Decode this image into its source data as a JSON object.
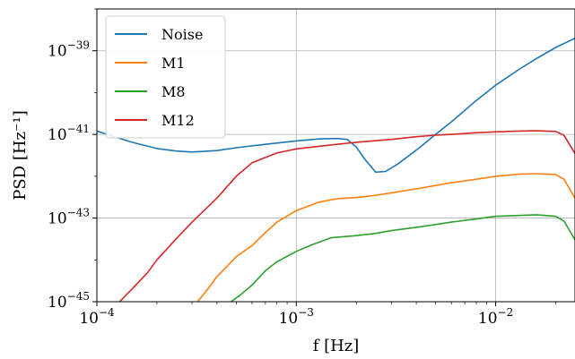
{
  "chart_data": {
    "type": "line",
    "xlabel": "f [Hz]",
    "ylabel": "PSD [Hz⁻¹]",
    "xscale": "log",
    "yscale": "log",
    "xlim": [
      0.0001,
      0.025
    ],
    "ylim": [
      1e-45,
      1e-38
    ],
    "x_ticks": [
      {
        "value": 0.0001,
        "base": "10",
        "exp": "−4"
      },
      {
        "value": 0.001,
        "base": "10",
        "exp": "−3"
      },
      {
        "value": 0.01,
        "base": "10",
        "exp": "−2"
      }
    ],
    "y_ticks": [
      {
        "value": 1e-45,
        "base": "10",
        "exp": "−45"
      },
      {
        "value": 1e-43,
        "base": "10",
        "exp": "−43"
      },
      {
        "value": 1e-41,
        "base": "10",
        "exp": "−41"
      },
      {
        "value": 1e-39,
        "base": "10",
        "exp": "−39"
      }
    ],
    "grid": true,
    "legend_position": "top-left",
    "series": [
      {
        "name": "Noise",
        "color": "#1f77b4",
        "x": [
          0.0001,
          0.00015,
          0.0002,
          0.00025,
          0.0003,
          0.0004,
          0.0005,
          0.0007,
          0.001,
          0.0013,
          0.0016,
          0.0018,
          0.002,
          0.0022,
          0.0025,
          0.0028,
          0.0032,
          0.004,
          0.005,
          0.006,
          0.008,
          0.01,
          0.013,
          0.016,
          0.02,
          0.025
        ],
        "y": [
          1.2e-41,
          6.5e-42,
          4.6e-42,
          4e-42,
          3.8e-42,
          4.1e-42,
          4.8e-42,
          5.8e-42,
          7e-42,
          7.8e-42,
          8e-42,
          7.6e-42,
          5e-42,
          2.6e-42,
          1.25e-42,
          1.3e-42,
          1.9e-42,
          4.2e-42,
          1e-41,
          2e-41,
          6.5e-41,
          1.5e-40,
          3.5e-40,
          6.5e-40,
          1.2e-39,
          2e-39
        ]
      },
      {
        "name": "M1",
        "color": "#ff7f0e",
        "x": [
          0.00032,
          0.00036,
          0.0004,
          0.00045,
          0.0005,
          0.0006,
          0.0007,
          0.0008,
          0.001,
          0.0013,
          0.0016,
          0.002,
          0.0025,
          0.003,
          0.004,
          0.005,
          0.006,
          0.008,
          0.01,
          0.013,
          0.016,
          0.02,
          0.022,
          0.025
        ],
        "y": [
          1e-45,
          2e-45,
          4e-45,
          7e-45,
          1.2e-44,
          2.2e-44,
          4.5e-44,
          8e-44,
          1.5e-43,
          2.4e-43,
          2.9e-43,
          3.1e-43,
          3.5e-43,
          4e-43,
          5e-43,
          6e-43,
          7e-43,
          8.5e-43,
          1e-42,
          1.12e-42,
          1.15e-42,
          1.1e-42,
          8.5e-43,
          3e-43
        ]
      },
      {
        "name": "M8",
        "color": "#2ca02c",
        "x": [
          0.00047,
          0.00052,
          0.0006,
          0.0007,
          0.0008,
          0.001,
          0.0012,
          0.0015,
          0.002,
          0.0025,
          0.003,
          0.004,
          0.005,
          0.006,
          0.008,
          0.01,
          0.013,
          0.016,
          0.02,
          0.022,
          0.025
        ],
        "y": [
          1e-45,
          1.4e-45,
          2.5e-45,
          5.5e-45,
          9e-45,
          1.6e-44,
          2.3e-44,
          3.4e-44,
          3.8e-44,
          4.3e-44,
          5e-44,
          6e-44,
          7e-44,
          8e-44,
          9.5e-44,
          1.1e-43,
          1.15e-43,
          1.2e-43,
          1.1e-43,
          8.5e-44,
          3e-44
        ]
      },
      {
        "name": "M12",
        "color": "#d62728",
        "x": [
          0.00013,
          0.00015,
          0.00018,
          0.0002,
          0.00025,
          0.0003,
          0.0004,
          0.0005,
          0.0006,
          0.0008,
          0.001,
          0.0013,
          0.0016,
          0.002,
          0.003,
          0.004,
          0.005,
          0.006,
          0.008,
          0.01,
          0.013,
          0.016,
          0.02,
          0.022,
          0.025
        ],
        "y": [
          1e-45,
          2e-45,
          5e-45,
          1e-44,
          3.2e-44,
          8e-44,
          3e-43,
          1e-42,
          2.1e-42,
          3.6e-42,
          4.5e-42,
          5.2e-42,
          5.8e-42,
          6.5e-42,
          7.6e-42,
          8.8e-42,
          9.6e-42,
          1e-41,
          1.1e-41,
          1.15e-41,
          1.2e-41,
          1.22e-41,
          1.18e-41,
          9.5e-42,
          3.5e-42
        ]
      }
    ]
  }
}
